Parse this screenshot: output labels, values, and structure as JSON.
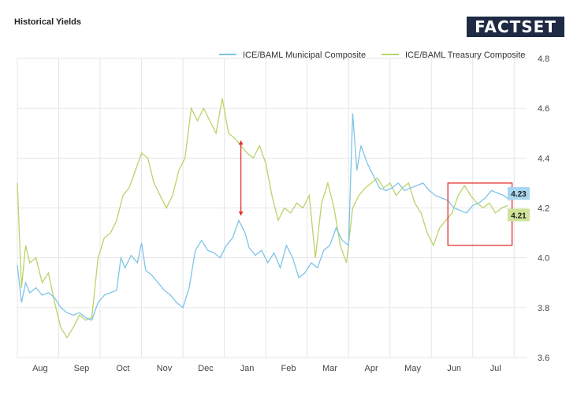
{
  "header": {
    "title": "Historical Yields",
    "logo_text": "FACTSET"
  },
  "chart_data": {
    "type": "line",
    "title": "Historical Yields",
    "xlabel": "",
    "ylabel": "",
    "ylim": [
      3.6,
      4.8
    ],
    "y_ticks": [
      "3.6",
      "3.8",
      "4.0",
      "4.2",
      "4.4",
      "4.6",
      "4.8"
    ],
    "y_tick_values": [
      3.6,
      3.8,
      4.0,
      4.2,
      4.4,
      4.6,
      4.8
    ],
    "x_ticks": [
      "Aug",
      "Sep",
      "Oct",
      "Nov",
      "Dec",
      "Jan",
      "Feb",
      "Mar",
      "Apr",
      "May",
      "Jun",
      "Jul"
    ],
    "x_range": [
      0,
      12.3
    ],
    "x_tick_positions": [
      0.55,
      1.55,
      2.55,
      3.55,
      4.55,
      5.55,
      6.55,
      7.55,
      8.55,
      9.55,
      10.55,
      11.55
    ],
    "grid": true,
    "legend_position": "top-right",
    "series": [
      {
        "name": "ICE/BAML Municipal Composite",
        "color": "#7ec4e8",
        "last_label": "4.23",
        "last_value": 4.23,
        "x": [
          0.0,
          0.1,
          0.2,
          0.3,
          0.45,
          0.6,
          0.75,
          0.9,
          1.05,
          1.2,
          1.35,
          1.5,
          1.65,
          1.8,
          1.95,
          2.1,
          2.25,
          2.4,
          2.5,
          2.6,
          2.75,
          2.9,
          3.0,
          3.1,
          3.25,
          3.4,
          3.55,
          3.7,
          3.85,
          4.0,
          4.15,
          4.3,
          4.45,
          4.6,
          4.75,
          4.9,
          5.05,
          5.2,
          5.35,
          5.5,
          5.6,
          5.75,
          5.9,
          6.05,
          6.2,
          6.35,
          6.5,
          6.65,
          6.8,
          6.95,
          7.1,
          7.25,
          7.4,
          7.55,
          7.7,
          7.85,
          8.0,
          8.1,
          8.2,
          8.3,
          8.45,
          8.6,
          8.75,
          8.9,
          9.05,
          9.2,
          9.35,
          9.5,
          9.65,
          9.8,
          9.95,
          10.1,
          10.25,
          10.4,
          10.55,
          10.7,
          10.85,
          11.0,
          11.15,
          11.3,
          11.45,
          11.6,
          11.75,
          11.9
        ],
        "y": [
          3.97,
          3.82,
          3.9,
          3.86,
          3.88,
          3.85,
          3.86,
          3.84,
          3.8,
          3.78,
          3.77,
          3.78,
          3.76,
          3.75,
          3.82,
          3.85,
          3.86,
          3.87,
          4.0,
          3.96,
          4.01,
          3.98,
          4.06,
          3.95,
          3.93,
          3.9,
          3.87,
          3.85,
          3.82,
          3.8,
          3.88,
          4.03,
          4.07,
          4.03,
          4.02,
          4.0,
          4.05,
          4.08,
          4.15,
          4.1,
          4.04,
          4.01,
          4.03,
          3.98,
          4.02,
          3.96,
          4.05,
          4.0,
          3.92,
          3.94,
          3.98,
          3.96,
          4.03,
          4.05,
          4.12,
          4.07,
          4.05,
          4.58,
          4.35,
          4.45,
          4.38,
          4.33,
          4.28,
          4.27,
          4.28,
          4.3,
          4.27,
          4.28,
          4.29,
          4.3,
          4.27,
          4.25,
          4.24,
          4.23,
          4.2,
          4.19,
          4.18,
          4.21,
          4.22,
          4.24,
          4.27,
          4.26,
          4.25,
          4.23
        ]
      },
      {
        "name": "ICE/BAML Treasury Composite",
        "color": "#b8d46a",
        "last_label": "4.21",
        "last_value": 4.21,
        "x": [
          0.0,
          0.1,
          0.2,
          0.3,
          0.45,
          0.6,
          0.75,
          0.9,
          1.05,
          1.2,
          1.35,
          1.5,
          1.65,
          1.8,
          1.95,
          2.1,
          2.25,
          2.4,
          2.55,
          2.7,
          2.85,
          3.0,
          3.15,
          3.3,
          3.45,
          3.6,
          3.75,
          3.9,
          4.05,
          4.2,
          4.35,
          4.5,
          4.65,
          4.8,
          4.95,
          5.1,
          5.25,
          5.4,
          5.55,
          5.7,
          5.85,
          6.0,
          6.15,
          6.3,
          6.45,
          6.6,
          6.75,
          6.9,
          7.05,
          7.2,
          7.35,
          7.5,
          7.65,
          7.8,
          7.95,
          8.1,
          8.25,
          8.4,
          8.55,
          8.7,
          8.85,
          9.0,
          9.15,
          9.3,
          9.45,
          9.6,
          9.75,
          9.9,
          10.05,
          10.2,
          10.35,
          10.5,
          10.65,
          10.8,
          10.95,
          11.1,
          11.25,
          11.4,
          11.55,
          11.7,
          11.85
        ],
        "y": [
          4.3,
          3.88,
          4.05,
          3.98,
          4.0,
          3.9,
          3.94,
          3.82,
          3.72,
          3.68,
          3.72,
          3.77,
          3.75,
          3.76,
          4.0,
          4.08,
          4.1,
          4.15,
          4.25,
          4.28,
          4.35,
          4.42,
          4.4,
          4.3,
          4.25,
          4.2,
          4.25,
          4.35,
          4.4,
          4.6,
          4.55,
          4.6,
          4.55,
          4.5,
          4.64,
          4.5,
          4.48,
          4.45,
          4.42,
          4.4,
          4.45,
          4.38,
          4.25,
          4.15,
          4.2,
          4.18,
          4.22,
          4.2,
          4.25,
          4.0,
          4.22,
          4.3,
          4.2,
          4.05,
          3.98,
          4.2,
          4.25,
          4.28,
          4.3,
          4.32,
          4.28,
          4.3,
          4.25,
          4.28,
          4.3,
          4.22,
          4.18,
          4.1,
          4.05,
          4.12,
          4.15,
          4.18,
          4.25,
          4.29,
          4.25,
          4.22,
          4.2,
          4.22,
          4.18,
          4.2,
          4.21
        ]
      }
    ]
  }
}
